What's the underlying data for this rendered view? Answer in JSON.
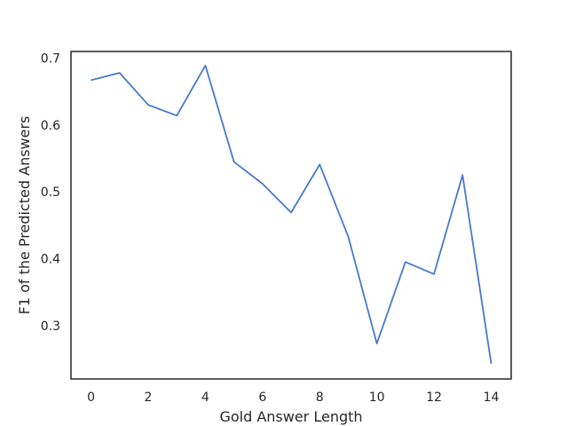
{
  "chart_data": {
    "type": "line",
    "title": "",
    "xlabel": "Gold Answer Length",
    "ylabel": "F1 of the Predicted Answers",
    "xlim": [
      -0.7,
      14.7
    ],
    "ylim": [
      0.22,
      0.71
    ],
    "xticks": [
      0,
      2,
      4,
      6,
      8,
      10,
      12,
      14
    ],
    "yticks": [
      0.3,
      0.4,
      0.5,
      0.6,
      0.7
    ],
    "ytick_labels": [
      "0.3",
      "0.4",
      "0.5",
      "0.6",
      "0.7"
    ],
    "grid": false,
    "legend": "none",
    "series": [
      {
        "color": "#4878cf",
        "x": [
          0,
          1,
          2,
          3,
          4,
          5,
          6,
          7,
          8,
          9,
          10,
          11,
          12,
          13,
          14
        ],
        "y": [
          0.667,
          0.678,
          0.63,
          0.614,
          0.689,
          0.545,
          0.512,
          0.469,
          0.541,
          0.433,
          0.273,
          0.395,
          0.377,
          0.525,
          0.243
        ]
      }
    ]
  }
}
